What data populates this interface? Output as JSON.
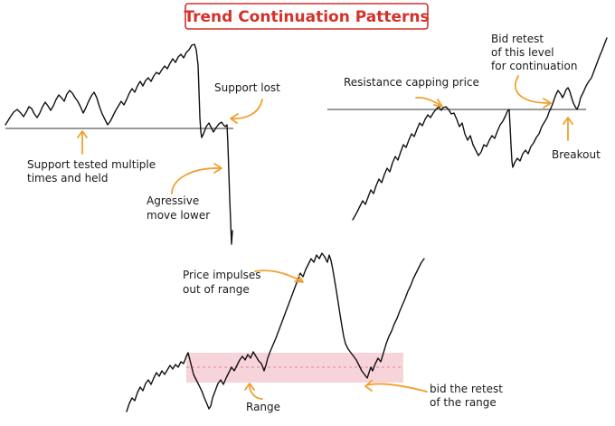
{
  "title": "Trend Continuation Patterns",
  "panels": {
    "support": {
      "annotations": {
        "support_lost": "Support lost",
        "support_tested_l1": "Support tested multiple",
        "support_tested_l2": "times and held",
        "aggressive_l1": "Agressive",
        "aggressive_l2": "move lower"
      }
    },
    "resistance": {
      "annotations": {
        "resistance_capping": "Resistance capping price",
        "bid_retest_l1": "Bid retest",
        "bid_retest_l2": "of this level",
        "bid_retest_l3": "for continuation",
        "breakout": "Breakout"
      }
    },
    "range": {
      "annotations": {
        "impulses_l1": "Price impulses",
        "impulses_l2": "out of range",
        "range": "Range",
        "bid_retest_range_l1": "bid the retest",
        "bid_retest_range_l2": "of the range"
      }
    }
  },
  "colors": {
    "title": "#d4312b",
    "arrow": "#f0a030",
    "range_fill": "#f6cdd3",
    "line": "#111111"
  }
}
